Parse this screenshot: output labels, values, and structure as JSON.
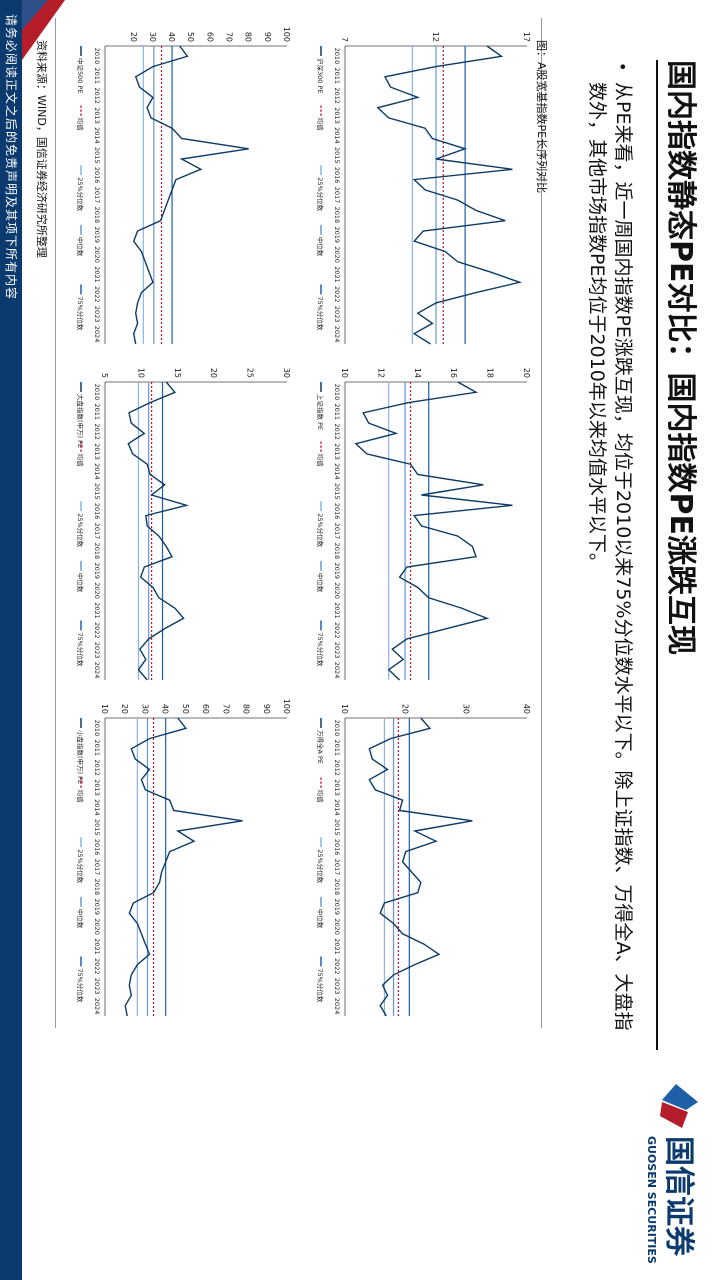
{
  "header": {
    "title": "国内指数静态PE对比：国内指数PE涨跌互现",
    "bullet": "从PE来看，近一周国内指数PE涨跌互现，均位于2010以来75%分位数水平以下。除上证指数、万得全A、大盘指数外，其他市场指数PE均位于2010年以来均值水平以下。"
  },
  "logo": {
    "cn": "国信证券",
    "en": "GUOSEN SECURITIES"
  },
  "figure": {
    "title": "图：A股宽基指数PE长序列对比",
    "source": "资料来源：WIND，国信证券经济研究所整理"
  },
  "footer": {
    "disclaimer": "请务必阅读正文之后的免责声明及其项下所有内容"
  },
  "colors": {
    "brand_blue": "#0b3a6e",
    "brand_red": "#b51d2a",
    "series": "#0d3b66",
    "mean": "#c8102e",
    "q25": "#8ab4e8",
    "median": "#6a95d0",
    "q75": "#1f5fa8"
  },
  "chart_data": [
    {
      "type": "line",
      "years": [
        "2010",
        "2011",
        "2012",
        "2013",
        "2014",
        "2015",
        "2016",
        "2017",
        "2018",
        "2019",
        "2020",
        "2021",
        "2022",
        "2023",
        "2024"
      ],
      "ylim": [
        7,
        17
      ],
      "yticks": [
        "7",
        "12",
        "17"
      ],
      "legend": [
        "沪深300 PE",
        "均值",
        "25%分位数",
        "中位数",
        "75%分位数"
      ],
      "stats": {
        "mean": 12.4,
        "q25": 10.7,
        "median": 12.0,
        "q75": 13.6
      },
      "series": [
        {
          "name": "沪深300 PE",
          "values": [
            14.8,
            15.6,
            12.0,
            9.2,
            9.5,
            11.0,
            8.8,
            9.4,
            11.4,
            11.8,
            13.6,
            12.0,
            16.2,
            10.8,
            11.4,
            13.2,
            14.2,
            15.8,
            11.3,
            10.8,
            12.5,
            13.2,
            15.0,
            16.6,
            14.2,
            12.0,
            11.0,
            11.8,
            10.8,
            11.7
          ]
        }
      ]
    },
    {
      "type": "line",
      "years": [
        "2010",
        "2011",
        "2012",
        "2013",
        "2014",
        "2015",
        "2016",
        "2017",
        "2018",
        "2019",
        "2020",
        "2021",
        "2022",
        "2023",
        "2024"
      ],
      "ylim": [
        10,
        20
      ],
      "yticks": [
        "10",
        "12",
        "14",
        "16",
        "18",
        "20"
      ],
      "legend": [
        "上证指数 PE",
        "均值",
        "25%分位数",
        "中位数",
        "75%分位数"
      ],
      "stats": {
        "mean": 13.6,
        "q25": 12.4,
        "median": 13.3,
        "q75": 14.6
      },
      "series": [
        {
          "name": "上证指数 PE",
          "values": [
            16.2,
            17.2,
            13.5,
            11.0,
            11.3,
            12.8,
            10.6,
            11.2,
            13.6,
            14.0,
            17.6,
            14.2,
            19.2,
            13.8,
            14.2,
            16.2,
            17.0,
            17.2,
            13.4,
            13.0,
            14.0,
            14.6,
            16.4,
            17.8,
            15.6,
            13.4,
            12.6,
            13.2,
            12.4,
            13.0
          ]
        }
      ]
    },
    {
      "type": "line",
      "years": [
        "2010",
        "2011",
        "2012",
        "2013",
        "2014",
        "2015",
        "2016",
        "2017",
        "2018",
        "2019",
        "2020",
        "2021",
        "2022",
        "2023",
        "2024"
      ],
      "ylim": [
        10,
        40
      ],
      "yticks": [
        "10",
        "20",
        "30",
        "40"
      ],
      "legend": [
        "万得全A PE",
        "均值",
        "25%分位数",
        "中位数",
        "75%分位数"
      ],
      "stats": {
        "mean": 18.8,
        "q25": 16.5,
        "median": 18.0,
        "q75": 20.6
      },
      "series": [
        {
          "name": "万得全A PE",
          "values": [
            22.5,
            24.0,
            17.5,
            14.0,
            14.5,
            17.0,
            14.0,
            15.0,
            19.5,
            19.0,
            31.0,
            21.5,
            25.0,
            20.0,
            19.5,
            21.0,
            22.5,
            22.0,
            16.5,
            15.8,
            18.0,
            19.5,
            23.0,
            25.5,
            21.5,
            18.0,
            16.2,
            17.0,
            15.8,
            16.8
          ]
        }
      ]
    },
    {
      "type": "line",
      "years": [
        "2010",
        "2011",
        "2012",
        "2013",
        "2014",
        "2015",
        "2016",
        "2017",
        "2018",
        "2019",
        "2020",
        "2021",
        "2022",
        "2023",
        "2024"
      ],
      "ylim": [
        5,
        100
      ],
      "yticks": [
        "20",
        "30",
        "40",
        "50",
        "60",
        "70",
        "80",
        "90",
        "100"
      ],
      "legend": [
        "中证500 PE",
        "均值",
        "25%分位数",
        "中位数",
        "75%分位数"
      ],
      "stats": {
        "mean": 34.5,
        "q25": 25.0,
        "median": 30.5,
        "q75": 40.0
      },
      "series": [
        {
          "name": "中证500 PE",
          "values": [
            44,
            48,
            30,
            21,
            23,
            30,
            27,
            29,
            40,
            45,
            80,
            45,
            55,
            42,
            40,
            38,
            36,
            34,
            22,
            20,
            24,
            26,
            28,
            30,
            24,
            22,
            21,
            22,
            20,
            21
          ]
        }
      ]
    },
    {
      "type": "line",
      "years": [
        "2010",
        "2011",
        "2012",
        "2013",
        "2014",
        "2015",
        "2016",
        "2017",
        "2018",
        "2019",
        "2020",
        "2021",
        "2022",
        "2023",
        "2024"
      ],
      "ylim": [
        5,
        30
      ],
      "yticks": [
        "5",
        "10",
        "15",
        "20",
        "25",
        "30"
      ],
      "legend": [
        "大盘指数(申万) PE",
        "均值",
        "25%分位数",
        "中位数",
        "75%分位数"
      ],
      "stats": {
        "mean": 11.4,
        "q25": 9.6,
        "median": 11.0,
        "q75": 12.9
      },
      "series": [
        {
          "name": "大盘指数(申万) PE",
          "values": [
            13.4,
            14.6,
            11.2,
            8.3,
            8.6,
            10.4,
            8.2,
            8.8,
            10.8,
            11.2,
            13.2,
            11.4,
            16.2,
            10.6,
            10.8,
            12.4,
            13.4,
            14.2,
            10.4,
            9.9,
            11.6,
            12.4,
            14.6,
            15.8,
            13.2,
            11.0,
            9.8,
            10.6,
            9.6,
            10.8
          ]
        }
      ]
    },
    {
      "type": "line",
      "years": [
        "2010",
        "2011",
        "2012",
        "2013",
        "2014",
        "2015",
        "2016",
        "2017",
        "2018",
        "2019",
        "2020",
        "2021",
        "2022",
        "2023",
        "2024"
      ],
      "ylim": [
        10,
        100
      ],
      "yticks": [
        "10",
        "20",
        "30",
        "40",
        "50",
        "60",
        "70",
        "80",
        "90",
        "100"
      ],
      "legend": [
        "小盘指数(申万) PE",
        "均值",
        "25%分位数",
        "中位数",
        "75%分位数"
      ],
      "stats": {
        "mean": 34.0,
        "q25": 26.0,
        "median": 31.0,
        "q75": 40.0
      },
      "series": [
        {
          "name": "小盘指数(申万) PE",
          "values": [
            46,
            50,
            32,
            23,
            25,
            32,
            28,
            30,
            42,
            44,
            78,
            46,
            54,
            42,
            40,
            38,
            37,
            34,
            24,
            22,
            26,
            28,
            30,
            32,
            26,
            23,
            22,
            23,
            20,
            21
          ]
        }
      ]
    }
  ]
}
